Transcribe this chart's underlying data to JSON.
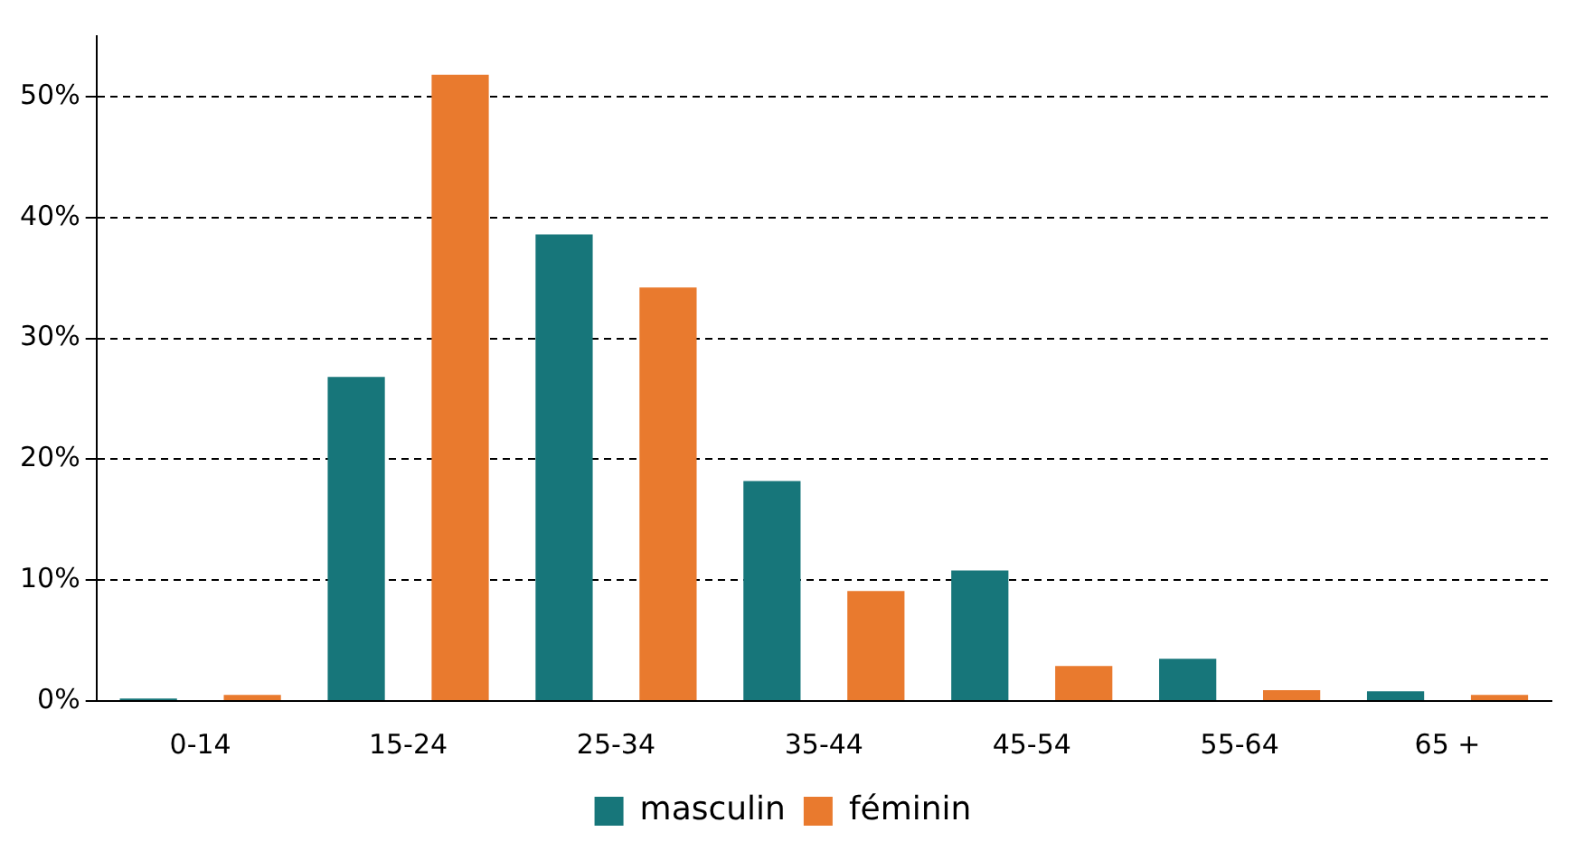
{
  "chart_data": {
    "type": "bar",
    "categories": [
      "0-14",
      "15-24",
      "25-34",
      "35-44",
      "45-54",
      "55-64",
      "65 +"
    ],
    "series": [
      {
        "name": "masculin",
        "color": "#17767a",
        "values": [
          0.2,
          26.8,
          38.6,
          18.2,
          10.8,
          3.5,
          0.8
        ]
      },
      {
        "name": "féminin",
        "color": "#e97a2e",
        "values": [
          0.5,
          51.8,
          34.2,
          9.1,
          2.9,
          0.9,
          0.5
        ]
      }
    ],
    "ylim": [
      0,
      55
    ],
    "yticks": [
      {
        "value": 0,
        "label": "0%"
      },
      {
        "value": 10,
        "label": "10%"
      },
      {
        "value": 20,
        "label": "20%"
      },
      {
        "value": 30,
        "label": "30%"
      },
      {
        "value": 40,
        "label": "40%"
      },
      {
        "value": 50,
        "label": "50%"
      }
    ],
    "grid": "y",
    "legend": "bottom"
  }
}
